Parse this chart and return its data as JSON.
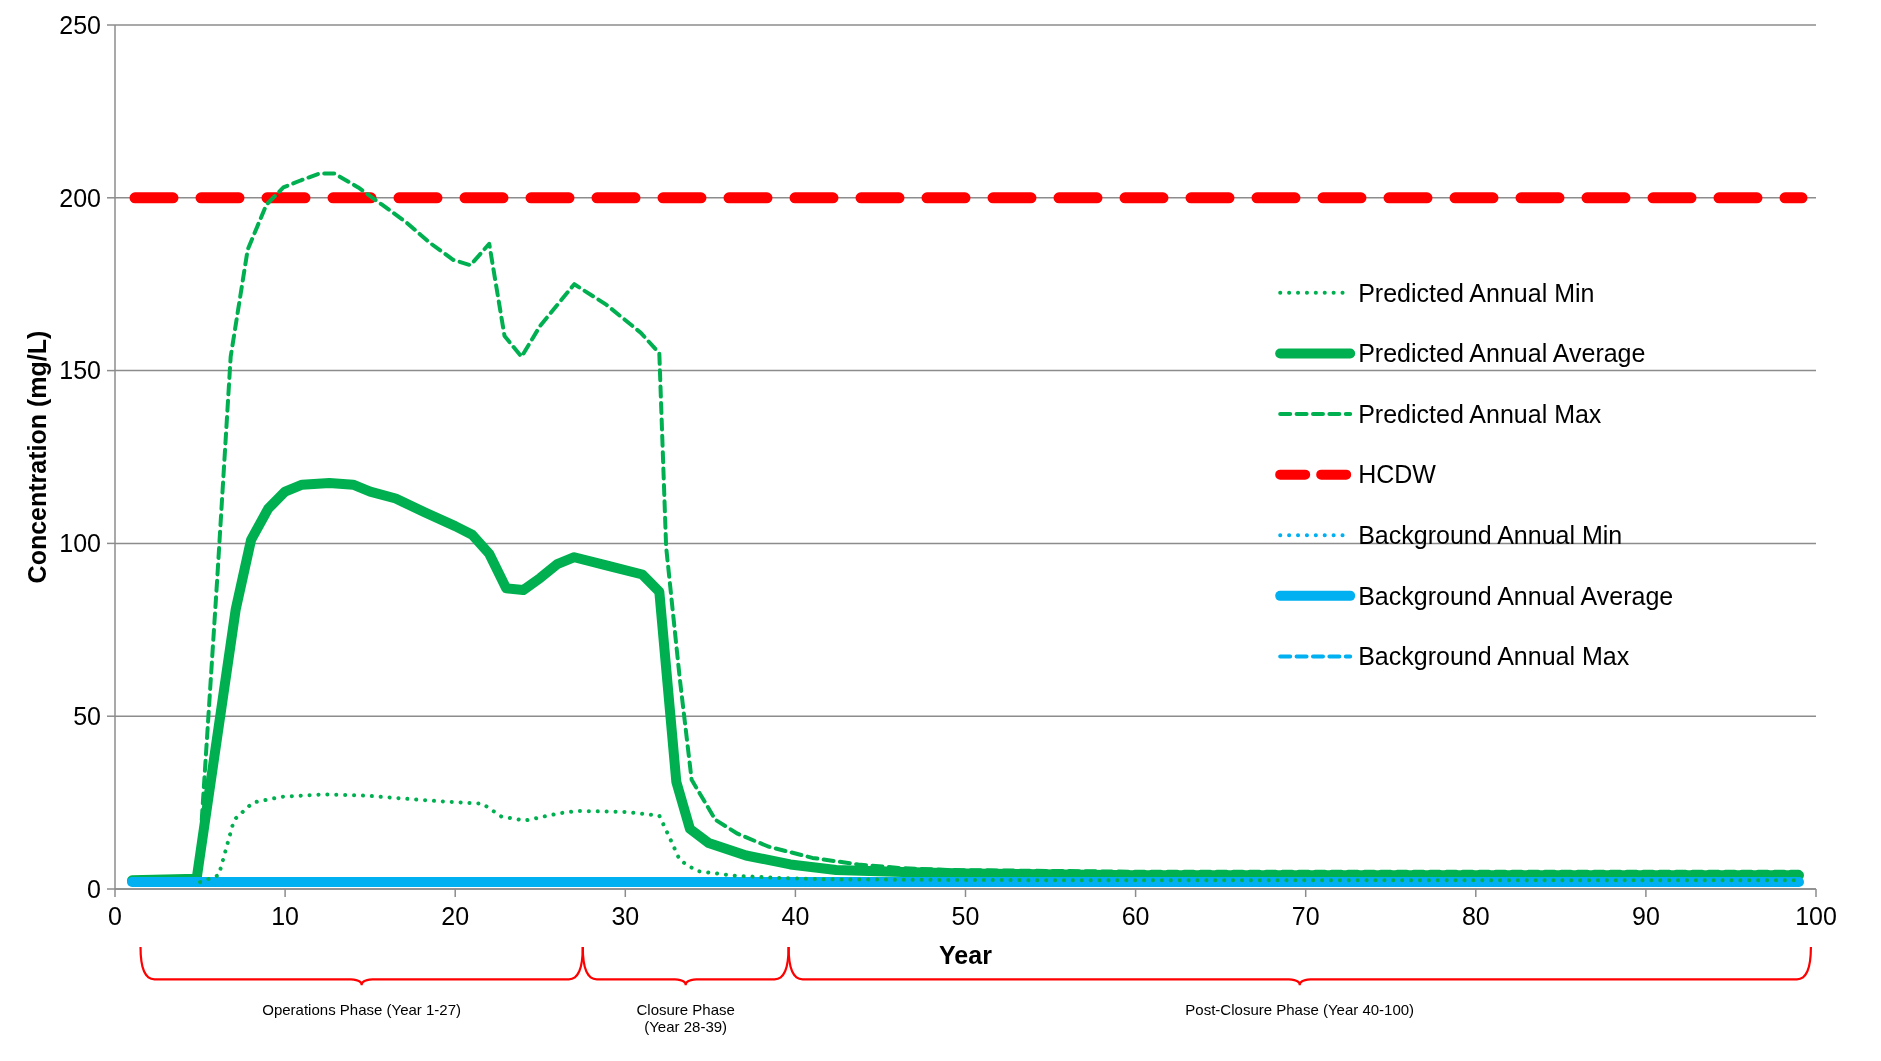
{
  "chart_data": {
    "type": "line",
    "xlabel": "Year",
    "ylabel": "Concentration (mg/L)",
    "xlim": [
      0,
      100
    ],
    "ylim": [
      0,
      250
    ],
    "xticks": [
      0,
      10,
      20,
      30,
      40,
      50,
      60,
      70,
      80,
      90,
      100
    ],
    "yticks": [
      0,
      50,
      100,
      150,
      200,
      250
    ],
    "grid": "y",
    "legend": "right",
    "marker": "none",
    "series": [
      {
        "name": "Predicted Annual Min",
        "color": "#00b050",
        "line_style": "dotted",
        "x": [
          5,
          6.1,
          7,
          8.1,
          9.8,
          12.3,
          14.8,
          17.4,
          19.4,
          21.6,
          22.7,
          24.1,
          26.1,
          27.2,
          30,
          32,
          32.6,
          33.2,
          34.2,
          36.3,
          38.9,
          42,
          50,
          60,
          70,
          80,
          90,
          99
        ],
        "values": [
          2,
          4,
          20,
          25,
          26.7,
          27.4,
          27,
          26,
          25.3,
          24.7,
          21,
          19.8,
          21.9,
          22.6,
          22.3,
          21.2,
          14.9,
          8.4,
          5.2,
          3.9,
          3.2,
          2.8,
          2.6,
          2.5,
          2.5,
          2.5,
          2.5,
          2.5
        ]
      },
      {
        "name": "Predicted Annual Average",
        "color": "#00b050",
        "line_style": "solid",
        "x": [
          1,
          4.8,
          7.1,
          8,
          9,
          10,
          11,
          12.6,
          14,
          15,
          16.5,
          18.2,
          20,
          21,
          22,
          23,
          24,
          25,
          26,
          27,
          29,
          31,
          32,
          33,
          33.8,
          34.9,
          37.1,
          39.7,
          42.4,
          46.3,
          50,
          60,
          70,
          80,
          90,
          99
        ],
        "values": [
          2.5,
          3,
          81,
          101,
          110,
          115,
          117,
          117.5,
          117,
          115,
          113,
          109,
          105,
          102.5,
          97,
          87,
          86.5,
          90,
          94,
          96,
          93.5,
          91,
          86,
          31,
          17.4,
          13.3,
          9.7,
          7.1,
          5.5,
          4.9,
          4.5,
          4,
          4,
          4,
          4,
          4
        ]
      },
      {
        "name": "Predicted Annual Max",
        "color": "#00b050",
        "line_style": "dashed",
        "x": [
          5.1,
          6,
          6.8,
          7.8,
          8.9,
          9.9,
          10.9,
          12,
          12.9,
          14.3,
          15.7,
          17.1,
          18.5,
          19.9,
          20.9,
          22,
          22.9,
          23.9,
          25,
          27,
          28.9,
          30.9,
          32,
          32.4,
          33.2,
          33.9,
          35.3,
          36.6,
          38.4,
          41,
          43.7,
          46.3,
          49,
          60,
          70,
          80,
          90,
          99
        ],
        "values": [
          20,
          89,
          154,
          185,
          198,
          203,
          205,
          207,
          207,
          203,
          198,
          193,
          187,
          182,
          180.5,
          186.7,
          160,
          154,
          163,
          175,
          169,
          161,
          155,
          99,
          61,
          31.6,
          20,
          16,
          12.3,
          9,
          7.1,
          6,
          5.5,
          5,
          5,
          5,
          5,
          5
        ]
      },
      {
        "name": "Background Annual Min",
        "color": "#00b0f0",
        "line_style": "dotted",
        "values": [
          null
        ]
      },
      {
        "name": "Background Annual Average",
        "color": "#00b0f0",
        "line_style": "solid",
        "x": [
          1,
          99
        ],
        "values": [
          2,
          2
        ]
      },
      {
        "name": "Background Annual Max",
        "color": "#00b0f0",
        "line_style": "dashed",
        "values": [
          null
        ]
      }
    ],
    "ref_lines": [
      {
        "axis": "y",
        "value": 200,
        "label": "HCDW",
        "color": "#ff0000",
        "line_style": "dashed"
      }
    ],
    "annotations": [
      "Operations Phase (Year 1-27)",
      "Closure Phase (Year 28-39)",
      "Post-Closure Phase (Year 40-100)"
    ]
  }
}
